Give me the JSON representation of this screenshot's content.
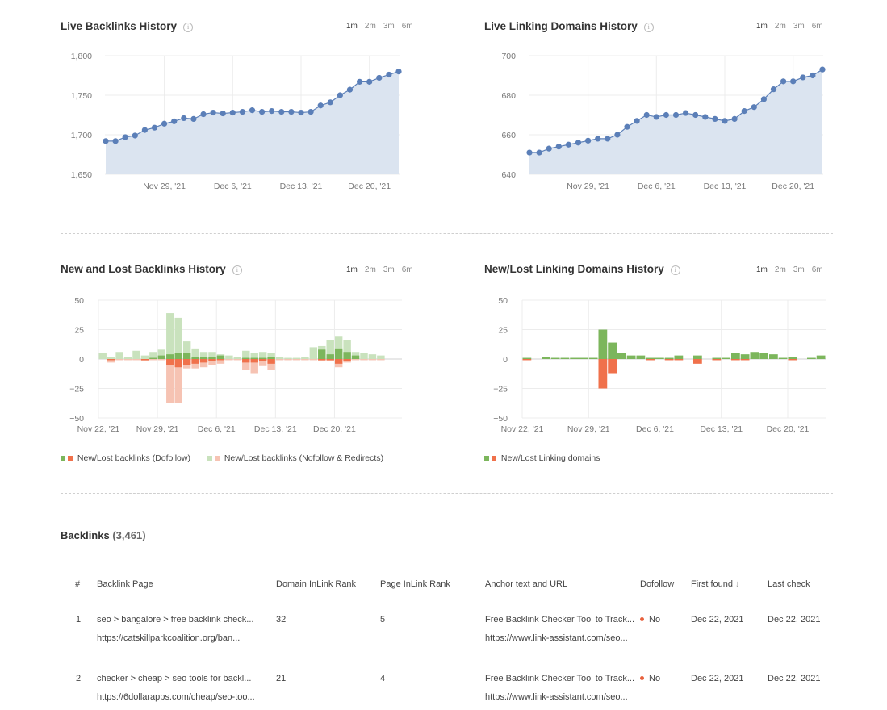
{
  "ranges": [
    "1m",
    "2m",
    "3m",
    "6m"
  ],
  "panels": {
    "live_backlinks": {
      "title": "Live Backlinks History"
    },
    "live_domains": {
      "title": "Live Linking Domains History"
    },
    "newlost_backlinks": {
      "title": "New and Lost Backlinks History",
      "legend": [
        "New/Lost backlinks (Dofollow)",
        "New/Lost backlinks (Nofollow & Redirects)"
      ]
    },
    "newlost_domains": {
      "title": "New/Lost Linking Domains History",
      "legend": [
        "New/Lost Linking domains"
      ]
    }
  },
  "colors": {
    "line": "#5b7fb8",
    "area": "#dbe4f0",
    "dofollow_new": "#7cb65c",
    "dofollow_lost": "#f0714b",
    "nofollow_new": "#c9e2bd",
    "nofollow_lost": "#f6c3b3"
  },
  "chart_data": [
    {
      "type": "area",
      "title": "Live Backlinks History",
      "yticks": [
        "1,800",
        "1,750",
        "1,700",
        "1,650"
      ],
      "ylim": [
        1650,
        1800
      ],
      "xticks": [
        "Nov 29, '21",
        "Dec 6, '21",
        "Dec 13, '21",
        "Dec 20, '21"
      ],
      "values": [
        1692,
        1692,
        1697,
        1699,
        1706,
        1709,
        1714,
        1717,
        1721,
        1720,
        1726,
        1728,
        1727,
        1728,
        1729,
        1731,
        1729,
        1730,
        1729,
        1729,
        1728,
        1729,
        1737,
        1741,
        1750,
        1757,
        1767,
        1767,
        1772,
        1776,
        1780
      ]
    },
    {
      "type": "area",
      "title": "Live Linking Domains History",
      "yticks": [
        "700",
        "680",
        "660",
        "640"
      ],
      "ylim": [
        640,
        700
      ],
      "xticks": [
        "Nov 29, '21",
        "Dec 6, '21",
        "Dec 13, '21",
        "Dec 20, '21"
      ],
      "values": [
        651,
        651,
        653,
        654,
        655,
        656,
        657,
        658,
        658,
        660,
        664,
        667,
        670,
        669,
        670,
        670,
        671,
        670,
        669,
        668,
        667,
        668,
        672,
        674,
        678,
        683,
        687,
        687,
        689,
        690,
        693
      ]
    },
    {
      "type": "bar",
      "title": "New and Lost Backlinks History",
      "yticks": [
        "50",
        "25",
        "0",
        "−25",
        "−50"
      ],
      "ylim": [
        -50,
        50
      ],
      "xticks": [
        "Nov 22, '21",
        "Nov 29, '21",
        "Dec 6, '21",
        "Dec 13, '21",
        "Dec 20, '21"
      ],
      "series": [
        {
          "name": "New/Lost backlinks (Dofollow)",
          "new": [
            0,
            0,
            0,
            0,
            0,
            0,
            1,
            3,
            4,
            5,
            5,
            2,
            2,
            2,
            3,
            0,
            0,
            1,
            1,
            1,
            2,
            0,
            0,
            0,
            0,
            0,
            8,
            4,
            9,
            6,
            3,
            0,
            0,
            0,
            0,
            0
          ],
          "lost": [
            0,
            -1,
            0,
            0,
            0,
            -1,
            0,
            0,
            -5,
            -7,
            -5,
            -4,
            -3,
            -2,
            -1,
            0,
            0,
            -3,
            -3,
            -2,
            -4,
            0,
            0,
            0,
            0,
            0,
            -1,
            -1,
            -4,
            -2,
            0,
            0,
            0,
            0,
            0,
            0
          ]
        },
        {
          "name": "New/Lost backlinks (Nofollow & Redirects)",
          "new": [
            5,
            2,
            6,
            2,
            7,
            3,
            5,
            5,
            35,
            30,
            10,
            7,
            4,
            4,
            1,
            3,
            2,
            6,
            4,
            5,
            3,
            2,
            1,
            1,
            2,
            10,
            3,
            12,
            10,
            10,
            3,
            5,
            4,
            3,
            0,
            0
          ],
          "lost": [
            0,
            -2,
            -1,
            -1,
            -1,
            -1,
            -1,
            -1,
            -32,
            -30,
            -3,
            -4,
            -4,
            -3,
            -3,
            -1,
            -1,
            -6,
            -9,
            -4,
            -5,
            -1,
            -1,
            -1,
            -1,
            -1,
            -1,
            -1,
            -3,
            -1,
            -1,
            -1,
            -1,
            -1,
            0,
            0
          ]
        }
      ]
    },
    {
      "type": "bar",
      "title": "New/Lost Linking Domains History",
      "yticks": [
        "50",
        "25",
        "0",
        "−25",
        "−50"
      ],
      "ylim": [
        -50,
        50
      ],
      "xticks": [
        "Nov 22, '21",
        "Nov 29, '21",
        "Dec 6, '21",
        "Dec 13, '21",
        "Dec 20, '21"
      ],
      "series": [
        {
          "name": "New/Lost Linking domains",
          "new": [
            1,
            0,
            2,
            1,
            1,
            1,
            1,
            1,
            25,
            14,
            5,
            3,
            3,
            1,
            1,
            1,
            3,
            0,
            3,
            0,
            1,
            1,
            5,
            4,
            6,
            5,
            4,
            1,
            2,
            0,
            1,
            3
          ],
          "lost": [
            -1,
            0,
            0,
            0,
            0,
            0,
            0,
            0,
            -25,
            -12,
            0,
            0,
            0,
            -1,
            0,
            -1,
            -1,
            0,
            -4,
            0,
            -1,
            0,
            -1,
            -1,
            0,
            0,
            0,
            0,
            -1,
            0,
            0,
            0
          ]
        }
      ]
    }
  ],
  "backlinks": {
    "label": "Backlinks",
    "count": "(3,461)",
    "columns": [
      "#",
      "Backlink Page",
      "Domain InLink Rank",
      "Page InLink Rank",
      "Anchor text and URL",
      "Dofollow",
      "First found",
      "Last check"
    ],
    "sort_arrow": "↓",
    "rows": [
      {
        "num": "1",
        "page": "seo > bangalore > free backlink check...",
        "page_url": "https://catskillparkcoalition.org/ban...",
        "domain_rank": "32",
        "page_rank": "5",
        "anchor": "Free Backlink Checker Tool to Track...",
        "anchor_url": "https://www.link-assistant.com/seo...",
        "dofollow": "No",
        "first": "Dec 22, 2021",
        "last": "Dec 22, 2021"
      },
      {
        "num": "2",
        "page": "checker > cheap > seo tools for backl...",
        "page_url": "https://6dollarapps.com/cheap/seo-too...",
        "domain_rank": "21",
        "page_rank": "4",
        "anchor": "Free Backlink Checker Tool to Track...",
        "anchor_url": "https://www.link-assistant.com/seo...",
        "dofollow": "No",
        "first": "Dec 22, 2021",
        "last": "Dec 22, 2021"
      }
    ]
  }
}
